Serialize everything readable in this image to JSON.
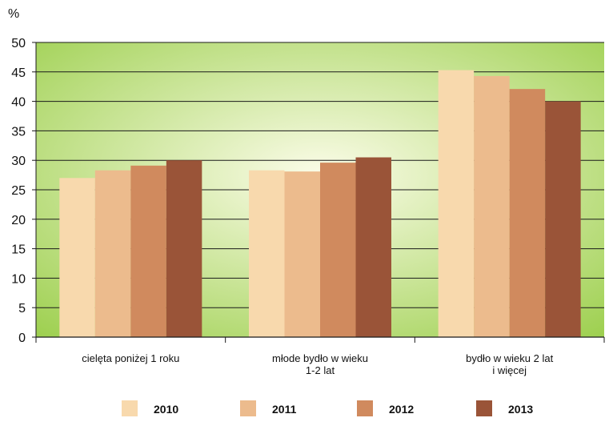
{
  "chart_data": {
    "type": "bar",
    "title": "",
    "xlabel": "",
    "ylabel": "%",
    "ylim": [
      0,
      50
    ],
    "yticks": [
      0,
      5,
      10,
      15,
      20,
      25,
      30,
      35,
      40,
      45,
      50
    ],
    "grid": true,
    "legend_position": "bottom",
    "categories": [
      [
        "cielęta poniżej 1 roku"
      ],
      [
        "młode bydło w wieku",
        "1-2 lat"
      ],
      [
        "bydło w wieku 2 lat",
        "i więcej"
      ]
    ],
    "series": [
      {
        "name": "2010",
        "color": "#f8d9ad",
        "values": [
          27.0,
          28.3,
          45.3
        ]
      },
      {
        "name": "2011",
        "color": "#ecbb8d",
        "values": [
          28.3,
          28.1,
          44.3
        ]
      },
      {
        "name": "2012",
        "color": "#d08a5e",
        "values": [
          29.1,
          29.6,
          42.1
        ]
      },
      {
        "name": "2013",
        "color": "#9a5438",
        "values": [
          30.0,
          30.5,
          40.0
        ]
      }
    ],
    "plot_background": [
      "#fbfce8",
      "#9ccf4d"
    ]
  }
}
